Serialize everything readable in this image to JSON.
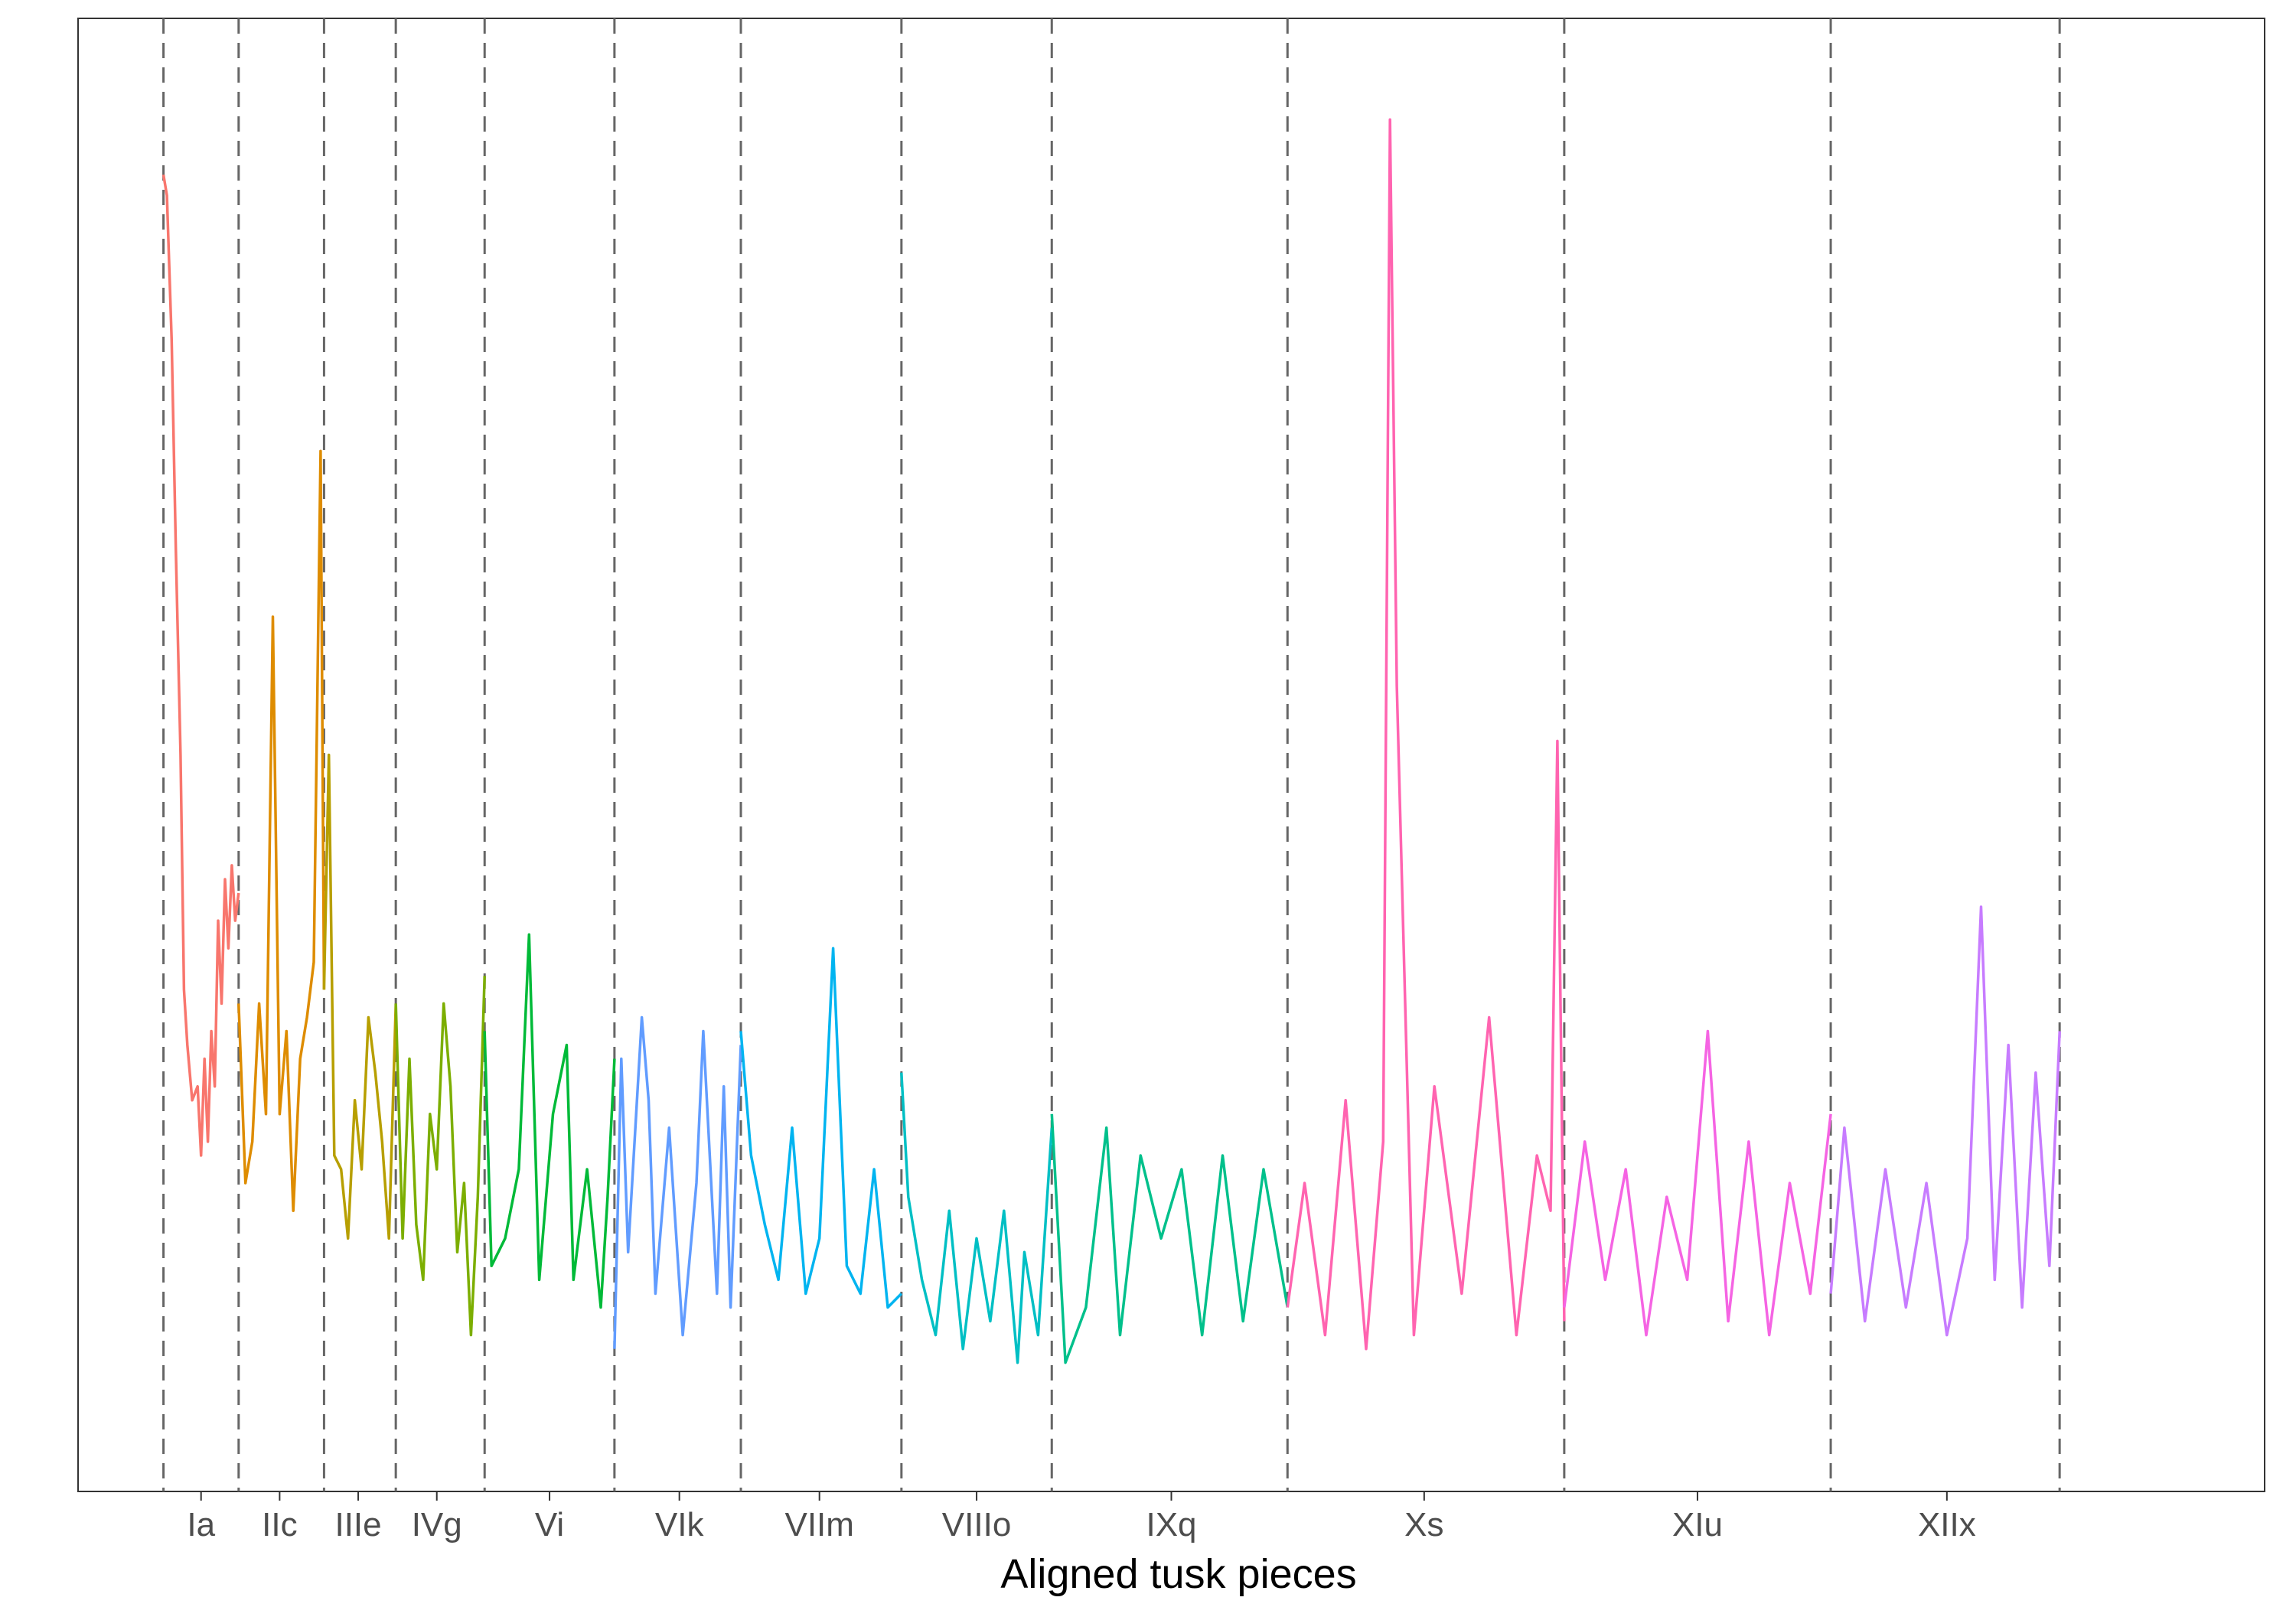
{
  "chart_data": {
    "type": "line",
    "title": "",
    "xlabel": "Aligned tusk pieces",
    "ylabel": "",
    "grid": false,
    "legend": "none",
    "x_range": [
      -1.25,
      30.75
    ],
    "boundaries": [
      0,
      1.1,
      2.35,
      3.4,
      4.7,
      6.6,
      8.45,
      10.8,
      13.0,
      16.45,
      20.5,
      24.4,
      27.75
    ],
    "segments": [
      {
        "name": "Ia",
        "label_x": 0.55,
        "color": "#F8766D"
      },
      {
        "name": "IIc",
        "label_x": 1.7,
        "color": "#DE8C00"
      },
      {
        "name": "IIIe",
        "label_x": 2.85,
        "color": "#B79F00"
      },
      {
        "name": "IVg",
        "label_x": 4.0,
        "color": "#7CAE00"
      },
      {
        "name": "Vi",
        "label_x": 5.65,
        "color": "#00BA38"
      },
      {
        "name": "VIk",
        "label_x": 7.55,
        "color": "#619CFF"
      },
      {
        "name": "VIIm",
        "label_x": 9.6,
        "color": "#00B4F0"
      },
      {
        "name": "VIIIo",
        "label_x": 11.9,
        "color": "#00BFC4"
      },
      {
        "name": "IXq",
        "label_x": 14.75,
        "color": "#00C08B"
      },
      {
        "name": "Xs",
        "label_x": 18.45,
        "color": "#FF64B0"
      },
      {
        "name": "XIu",
        "label_x": 22.45,
        "color": "#F564E3"
      },
      {
        "name": "XIIx",
        "label_x": 26.1,
        "color": "#C77CFF"
      }
    ],
    "series": [
      {
        "name": "Ia",
        "color": "#F8766D",
        "x": [
          0,
          0.05,
          0.12,
          0.18,
          0.25,
          0.3,
          0.35,
          0.42,
          0.5,
          0.55,
          0.6,
          0.65,
          0.7,
          0.75,
          0.8,
          0.85,
          0.9,
          0.95,
          1.0,
          1.05,
          1.1
        ],
        "y": [
          920,
          905,
          800,
          650,
          500,
          330,
          290,
          250,
          260,
          210,
          280,
          220,
          300,
          260,
          380,
          320,
          410,
          360,
          420,
          380,
          400
        ]
      },
      {
        "name": "IIc",
        "color": "#DE8C00",
        "x": [
          1.1,
          1.2,
          1.3,
          1.4,
          1.5,
          1.6,
          1.7,
          1.8,
          1.9,
          2.0,
          2.1,
          2.2,
          2.3,
          2.35
        ],
        "y": [
          320,
          190,
          220,
          320,
          240,
          600,
          240,
          300,
          170,
          280,
          310,
          350,
          720,
          330
        ]
      },
      {
        "name": "IIIe",
        "color": "#B79F00",
        "x": [
          2.35,
          2.42,
          2.5,
          2.6,
          2.7,
          2.8,
          2.9,
          3.0,
          3.1,
          3.2,
          3.3,
          3.4
        ],
        "y": [
          330,
          500,
          210,
          200,
          150,
          250,
          200,
          310,
          270,
          220,
          150,
          320
        ]
      },
      {
        "name": "IVg",
        "color": "#7CAE00",
        "x": [
          3.4,
          3.5,
          3.6,
          3.7,
          3.8,
          3.9,
          4.0,
          4.1,
          4.2,
          4.3,
          4.4,
          4.5,
          4.6,
          4.7
        ],
        "y": [
          320,
          150,
          280,
          160,
          120,
          240,
          200,
          320,
          260,
          140,
          190,
          80,
          180,
          340
        ]
      },
      {
        "name": "Vi",
        "color": "#00BA38",
        "x": [
          4.7,
          4.8,
          5.0,
          5.2,
          5.35,
          5.5,
          5.7,
          5.9,
          6.0,
          6.2,
          6.4,
          6.5,
          6.6
        ],
        "y": [
          300,
          130,
          150,
          200,
          370,
          120,
          240,
          290,
          120,
          200,
          100,
          180,
          280
        ]
      },
      {
        "name": "VIk",
        "color": "#619CFF",
        "x": [
          6.6,
          6.7,
          6.8,
          7.0,
          7.1,
          7.2,
          7.4,
          7.6,
          7.8,
          7.9,
          8.1,
          8.2,
          8.3,
          8.45
        ],
        "y": [
          70,
          280,
          140,
          310,
          250,
          110,
          230,
          80,
          190,
          300,
          110,
          260,
          100,
          290
        ]
      },
      {
        "name": "VIIm",
        "color": "#00B4F0",
        "x": [
          8.45,
          8.6,
          8.8,
          9.0,
          9.2,
          9.4,
          9.6,
          9.8,
          10.0,
          10.2,
          10.4,
          10.6,
          10.8
        ],
        "y": [
          300,
          210,
          160,
          120,
          230,
          110,
          150,
          360,
          130,
          110,
          200,
          100,
          110
        ]
      },
      {
        "name": "VIIIo",
        "color": "#00BFC4",
        "x": [
          10.8,
          10.9,
          11.1,
          11.3,
          11.5,
          11.7,
          11.9,
          12.1,
          12.3,
          12.5,
          12.6,
          12.8,
          13.0
        ],
        "y": [
          270,
          180,
          120,
          80,
          170,
          70,
          150,
          90,
          170,
          60,
          140,
          80,
          230
        ]
      },
      {
        "name": "IXq",
        "color": "#00C08B",
        "x": [
          13.0,
          13.2,
          13.5,
          13.8,
          14.0,
          14.3,
          14.6,
          14.9,
          15.2,
          15.5,
          15.8,
          16.1,
          16.45
        ],
        "y": [
          240,
          60,
          100,
          230,
          80,
          210,
          150,
          200,
          80,
          210,
          90,
          200,
          100
        ]
      },
      {
        "name": "Xs",
        "color": "#FF64B0",
        "x": [
          16.45,
          16.7,
          17.0,
          17.3,
          17.6,
          17.85,
          17.95,
          18.05,
          18.3,
          18.6,
          19.0,
          19.4,
          19.8,
          20.1,
          20.3,
          20.4,
          20.5
        ],
        "y": [
          100,
          190,
          80,
          250,
          70,
          220,
          960,
          550,
          80,
          260,
          110,
          310,
          80,
          210,
          170,
          510,
          90
        ]
      },
      {
        "name": "XIu",
        "color": "#F564E3",
        "x": [
          20.5,
          20.8,
          21.1,
          21.4,
          21.7,
          22.0,
          22.3,
          22.6,
          22.9,
          23.2,
          23.5,
          23.8,
          24.1,
          24.4
        ],
        "y": [
          100,
          220,
          120,
          200,
          80,
          180,
          120,
          300,
          90,
          220,
          80,
          190,
          110,
          240
        ]
      },
      {
        "name": "XIIx",
        "color": "#C77CFF",
        "x": [
          24.4,
          24.6,
          24.9,
          25.2,
          25.5,
          25.8,
          26.1,
          26.4,
          26.6,
          26.8,
          27.0,
          27.2,
          27.4,
          27.6,
          27.75
        ],
        "y": [
          110,
          230,
          90,
          200,
          100,
          190,
          80,
          150,
          390,
          120,
          290,
          100,
          270,
          130,
          300
        ]
      }
    ]
  }
}
